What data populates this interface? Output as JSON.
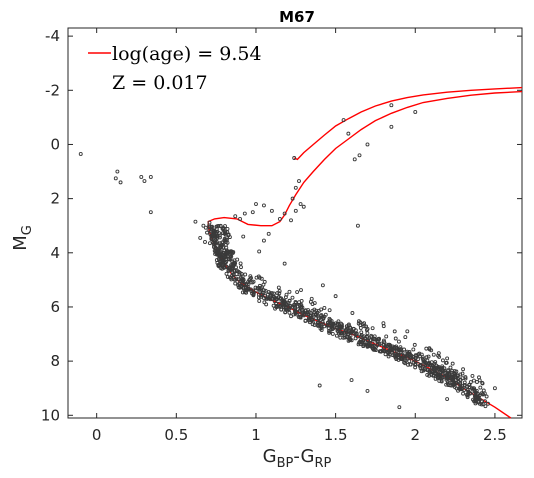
{
  "chart_data": {
    "type": "scatter",
    "title": "M67",
    "xlabel": {
      "base": "G",
      "sub1": "BP",
      "dash": "-",
      "base2": "G",
      "sub2": "RP"
    },
    "ylabel": {
      "base": "M",
      "sub": "G"
    },
    "xlim": [
      -0.18,
      2.67
    ],
    "ylim": [
      10.1,
      -4.3
    ],
    "y_inverted": true,
    "xticks": [
      0,
      0.5,
      1,
      1.5,
      2,
      2.5
    ],
    "xtick_labels": [
      "0",
      "0.5",
      "1",
      "1.5",
      "2",
      "2.5"
    ],
    "yticks": [
      -4,
      -2,
      0,
      2,
      4,
      6,
      8,
      10
    ],
    "ytick_labels": [
      "-4",
      "-2",
      "0",
      "2",
      "4",
      "6",
      "8",
      "10"
    ],
    "grid": false,
    "legend": {
      "placement": "top-left",
      "line_label": "log(age) = 9.54",
      "line2": "Z = 0.017"
    },
    "colors": {
      "isochrone": "#ff0000",
      "points": "#3a3a3a",
      "axes": "#262626"
    },
    "series": [
      {
        "type": "scatter",
        "note_free": true,
        "points": [
          [
            -0.1,
            0.35
          ],
          [
            0.13,
            1.0
          ],
          [
            0.12,
            1.25
          ],
          [
            0.15,
            1.4
          ],
          [
            0.28,
            1.2
          ],
          [
            0.3,
            1.35
          ],
          [
            0.34,
            1.2
          ],
          [
            0.34,
            2.5
          ],
          [
            1.24,
            0.5
          ],
          [
            1.27,
            1.35
          ],
          [
            1.25,
            1.6
          ],
          [
            1.28,
            2.2
          ],
          [
            1.23,
            2.0
          ],
          [
            1.25,
            2.45
          ],
          [
            1.3,
            2.3
          ],
          [
            1.22,
            2.8
          ],
          [
            1.15,
            2.75
          ],
          [
            1.18,
            2.55
          ],
          [
            1.05,
            2.25
          ],
          [
            1.1,
            2.45
          ],
          [
            0.93,
            2.55
          ],
          [
            0.98,
            2.5
          ],
          [
            1.0,
            2.2
          ],
          [
            0.87,
            2.65
          ],
          [
            0.9,
            2.75
          ],
          [
            0.62,
            2.85
          ],
          [
            0.65,
            3.45
          ],
          [
            0.68,
            3.6
          ],
          [
            0.67,
            3.0
          ],
          [
            1.64,
            3.0
          ],
          [
            1.7,
            0.0
          ],
          [
            1.62,
            0.55
          ],
          [
            1.65,
            0.4
          ],
          [
            1.85,
            -0.65
          ],
          [
            2.0,
            -1.2
          ],
          [
            1.85,
            -1.45
          ],
          [
            1.55,
            -0.9
          ],
          [
            1.58,
            -0.4
          ],
          [
            1.08,
            3.3
          ],
          [
            1.18,
            4.4
          ],
          [
            1.05,
            3.55
          ],
          [
            1.02,
            3.95
          ],
          [
            0.92,
            3.4
          ],
          [
            1.35,
            5.7
          ],
          [
            1.42,
            5.2
          ],
          [
            1.5,
            5.6
          ],
          [
            1.4,
            8.9
          ],
          [
            1.6,
            8.7
          ],
          [
            1.7,
            9.1
          ],
          [
            1.9,
            9.7
          ],
          [
            2.2,
            7.9
          ],
          [
            2.3,
            8.3
          ],
          [
            2.4,
            8.6
          ],
          [
            2.5,
            9.0
          ],
          [
            2.42,
            8.8
          ],
          [
            2.0,
            8.0
          ],
          [
            2.1,
            7.6
          ],
          [
            2.3,
            9.2
          ],
          [
            1.95,
            6.9
          ],
          [
            2.2,
            9.4
          ],
          [
            1.8,
            6.6
          ]
        ]
      },
      {
        "type": "line",
        "points": [
          [
            0.7,
            3.0
          ],
          [
            0.71,
            3.25
          ],
          [
            0.73,
            3.6
          ],
          [
            0.77,
            4.0
          ],
          [
            0.8,
            4.4
          ],
          [
            0.85,
            4.8
          ],
          [
            0.9,
            5.1
          ],
          [
            1.0,
            5.45
          ],
          [
            1.1,
            5.75
          ],
          [
            1.2,
            6.0
          ],
          [
            1.3,
            6.3
          ],
          [
            1.4,
            6.55
          ],
          [
            1.5,
            6.8
          ],
          [
            1.6,
            7.0
          ],
          [
            1.7,
            7.25
          ],
          [
            1.8,
            7.5
          ],
          [
            1.9,
            7.75
          ],
          [
            2.0,
            8.0
          ],
          [
            2.1,
            8.3
          ],
          [
            2.2,
            8.6
          ],
          [
            2.3,
            9.0
          ],
          [
            2.4,
            9.35
          ],
          [
            2.5,
            9.7
          ],
          [
            2.6,
            10.1
          ]
        ]
      },
      {
        "type": "line",
        "points": [
          [
            0.7,
            3.0
          ],
          [
            0.7,
            2.85
          ],
          [
            0.74,
            2.75
          ],
          [
            0.8,
            2.7
          ],
          [
            0.88,
            2.75
          ],
          [
            0.95,
            2.95
          ],
          [
            1.03,
            3.0
          ],
          [
            1.1,
            3.0
          ],
          [
            1.15,
            2.85
          ],
          [
            1.18,
            2.6
          ],
          [
            1.21,
            2.25
          ],
          [
            1.25,
            1.85
          ],
          [
            1.3,
            1.4
          ],
          [
            1.36,
            1.0
          ],
          [
            1.43,
            0.55
          ],
          [
            1.5,
            0.15
          ],
          [
            1.58,
            -0.2
          ],
          [
            1.66,
            -0.55
          ],
          [
            1.75,
            -0.88
          ],
          [
            1.85,
            -1.15
          ],
          [
            1.95,
            -1.37
          ],
          [
            2.05,
            -1.55
          ],
          [
            2.2,
            -1.7
          ],
          [
            2.35,
            -1.82
          ],
          [
            2.5,
            -1.9
          ],
          [
            2.67,
            -1.95
          ]
        ]
      },
      {
        "type": "line",
        "points": [
          [
            1.24,
            0.5
          ],
          [
            1.26,
            0.55
          ],
          [
            1.3,
            0.3
          ],
          [
            1.36,
            0.0
          ],
          [
            1.43,
            -0.35
          ],
          [
            1.5,
            -0.68
          ],
          [
            1.58,
            -0.95
          ],
          [
            1.66,
            -1.2
          ],
          [
            1.75,
            -1.42
          ],
          [
            1.85,
            -1.6
          ],
          [
            1.95,
            -1.73
          ],
          [
            2.05,
            -1.83
          ],
          [
            2.2,
            -1.93
          ],
          [
            2.35,
            -2.0
          ],
          [
            2.5,
            -2.05
          ],
          [
            2.67,
            -2.1
          ]
        ]
      }
    ],
    "main_sequence_band": {
      "description_free": true,
      "x_start": 0.7,
      "x_end": 2.45
    }
  }
}
